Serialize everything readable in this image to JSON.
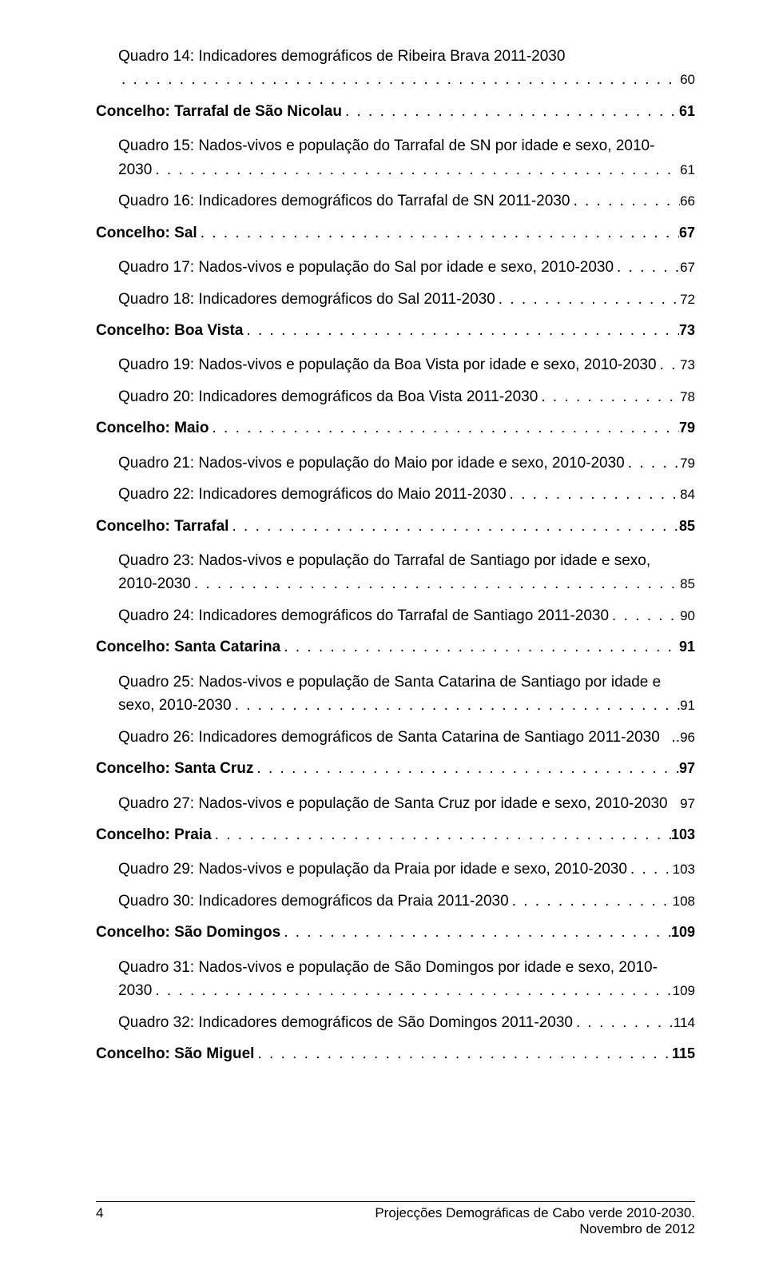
{
  "leaderDots": ". . . . . . . . . . . . . . . . . . . . . . . . . . . . . . . . . . . . . . . . . . . . . . . . . . . . . . . . . . . . . . . . . . . . . . . . . . . . . . . . . . . . . . . . . . . . . . . . . . . . . . . . . . . . . . . . . . . . . . . .",
  "entries": [
    {
      "type": "sub-wrap",
      "lines": [
        "Quadro 14: Indicadores demográficos de Ribeira Brava 2011-2030"
      ],
      "last": "",
      "page": "60"
    },
    {
      "type": "bold",
      "text": "Concelho: Tarrafal de São Nicolau",
      "page": "61"
    },
    {
      "type": "sub-wrap",
      "lines": [
        "Quadro 15: Nados-vivos e população do Tarrafal de SN por idade e sexo, 2010-"
      ],
      "last": "2030",
      "page": "61"
    },
    {
      "type": "sub",
      "text": "Quadro 16: Indicadores demográficos do Tarrafal de SN 2011-2030",
      "page": "66"
    },
    {
      "type": "bold",
      "text": "Concelho: Sal",
      "page": "67"
    },
    {
      "type": "sub",
      "text": "Quadro 17: Nados-vivos e população do Sal por idade e sexo, 2010-2030",
      "page": "67"
    },
    {
      "type": "sub",
      "text": "Quadro 18: Indicadores demográficos do Sal 2011-2030",
      "page": "72"
    },
    {
      "type": "bold",
      "text": "Concelho: Boa Vista",
      "page": "73"
    },
    {
      "type": "sub",
      "text": "Quadro 19: Nados-vivos e população da Boa Vista por idade e sexo, 2010-2030",
      "page": "73"
    },
    {
      "type": "sub",
      "text": "Quadro 20: Indicadores demográficos da Boa Vista 2011-2030",
      "page": "78"
    },
    {
      "type": "bold",
      "text": "Concelho: Maio",
      "page": "79"
    },
    {
      "type": "sub",
      "text": "Quadro 21: Nados-vivos e população do Maio por idade e sexo, 2010-2030",
      "page": "79"
    },
    {
      "type": "sub",
      "text": "Quadro 22: Indicadores demográficos do Maio 2011-2030",
      "page": "84"
    },
    {
      "type": "bold",
      "text": "Concelho: Tarrafal",
      "page": "85"
    },
    {
      "type": "sub-wrap",
      "lines": [
        "Quadro 23: Nados-vivos e população do Tarrafal de Santiago por idade e sexo,"
      ],
      "last": "2010-2030",
      "page": "85"
    },
    {
      "type": "sub",
      "text": "Quadro 24: Indicadores demográficos do Tarrafal de Santiago 2011-2030",
      "page": "90"
    },
    {
      "type": "bold",
      "text": "Concelho: Santa Catarina",
      "page": "91"
    },
    {
      "type": "sub-wrap",
      "lines": [
        "Quadro 25: Nados-vivos e população de Santa Catarina de Santiago por idade e"
      ],
      "last": "sexo, 2010-2030",
      "page": "91"
    },
    {
      "type": "sub",
      "text": "Quadro 26: Indicadores demográficos de Santa Catarina de Santiago 2011-2030",
      "page": "96",
      "tight": true
    },
    {
      "type": "bold",
      "text": "Concelho: Santa Cruz",
      "page": "97"
    },
    {
      "type": "sub",
      "text": "Quadro 27: Nados-vivos e população de Santa Cruz por idade e sexo, 2010-2030",
      "page": "97",
      "nodots": true
    },
    {
      "type": "bold",
      "text": "Concelho: Praia",
      "page": "103"
    },
    {
      "type": "sub",
      "text": "Quadro 29: Nados-vivos e população da Praia por idade e sexo, 2010-2030",
      "page": "103"
    },
    {
      "type": "sub",
      "text": "Quadro 30: Indicadores demográficos da Praia 2011-2030",
      "page": "108"
    },
    {
      "type": "bold",
      "text": "Concelho: São Domingos",
      "page": "109"
    },
    {
      "type": "sub-wrap",
      "lines": [
        "Quadro 31: Nados-vivos e população de São Domingos por idade e sexo, 2010-"
      ],
      "last": "2030",
      "page": "109"
    },
    {
      "type": "sub",
      "text": "Quadro 32: Indicadores demográficos de São Domingos 2011-2030",
      "page": "114"
    },
    {
      "type": "bold",
      "text": "Concelho: São Miguel",
      "page": "115"
    }
  ],
  "footer": {
    "pageNumber": "4",
    "line1": "Projecções Demográficas de Cabo verde 2010-2030.",
    "line2": "Novembro de 2012"
  }
}
